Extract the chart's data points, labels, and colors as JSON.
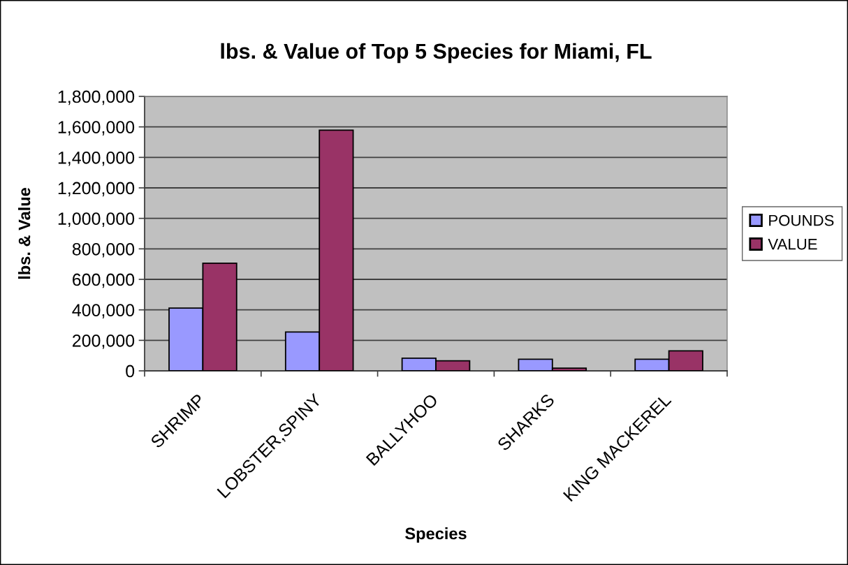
{
  "chart_data": {
    "type": "bar",
    "title": "lbs. & Value of Top 5 Species for Miami, FL",
    "xlabel": "Species",
    "ylabel": "lbs. & Value",
    "categories": [
      "SHRIMP",
      "LOBSTER,SPINY",
      "BALLYHOO",
      "SHARKS",
      "KING MACKEREL"
    ],
    "series": [
      {
        "name": "POUNDS",
        "color": "#9999ff",
        "values": [
          412000,
          255000,
          83000,
          76000,
          76000
        ]
      },
      {
        "name": "VALUE",
        "color": "#993366",
        "values": [
          706000,
          1578000,
          66000,
          18000,
          131000
        ]
      }
    ],
    "ylim": [
      0,
      1800000
    ],
    "yticks": [
      0,
      {
        "value": 200000,
        "label": "200,000"
      },
      {
        "value": 400000,
        "label": "400,000"
      },
      {
        "value": 600000,
        "label": "600,000"
      },
      {
        "value": 800000,
        "label": "800,000"
      },
      {
        "value": 1000000,
        "label": "1,000,000"
      },
      {
        "value": 1200000,
        "label": "1,200,000"
      },
      {
        "value": 1400000,
        "label": "1,400,000"
      },
      {
        "value": 1600000,
        "label": "1,600,000"
      },
      {
        "value": 1800000,
        "label": "1,800,000"
      }
    ],
    "grid": "y",
    "legend": "right"
  }
}
